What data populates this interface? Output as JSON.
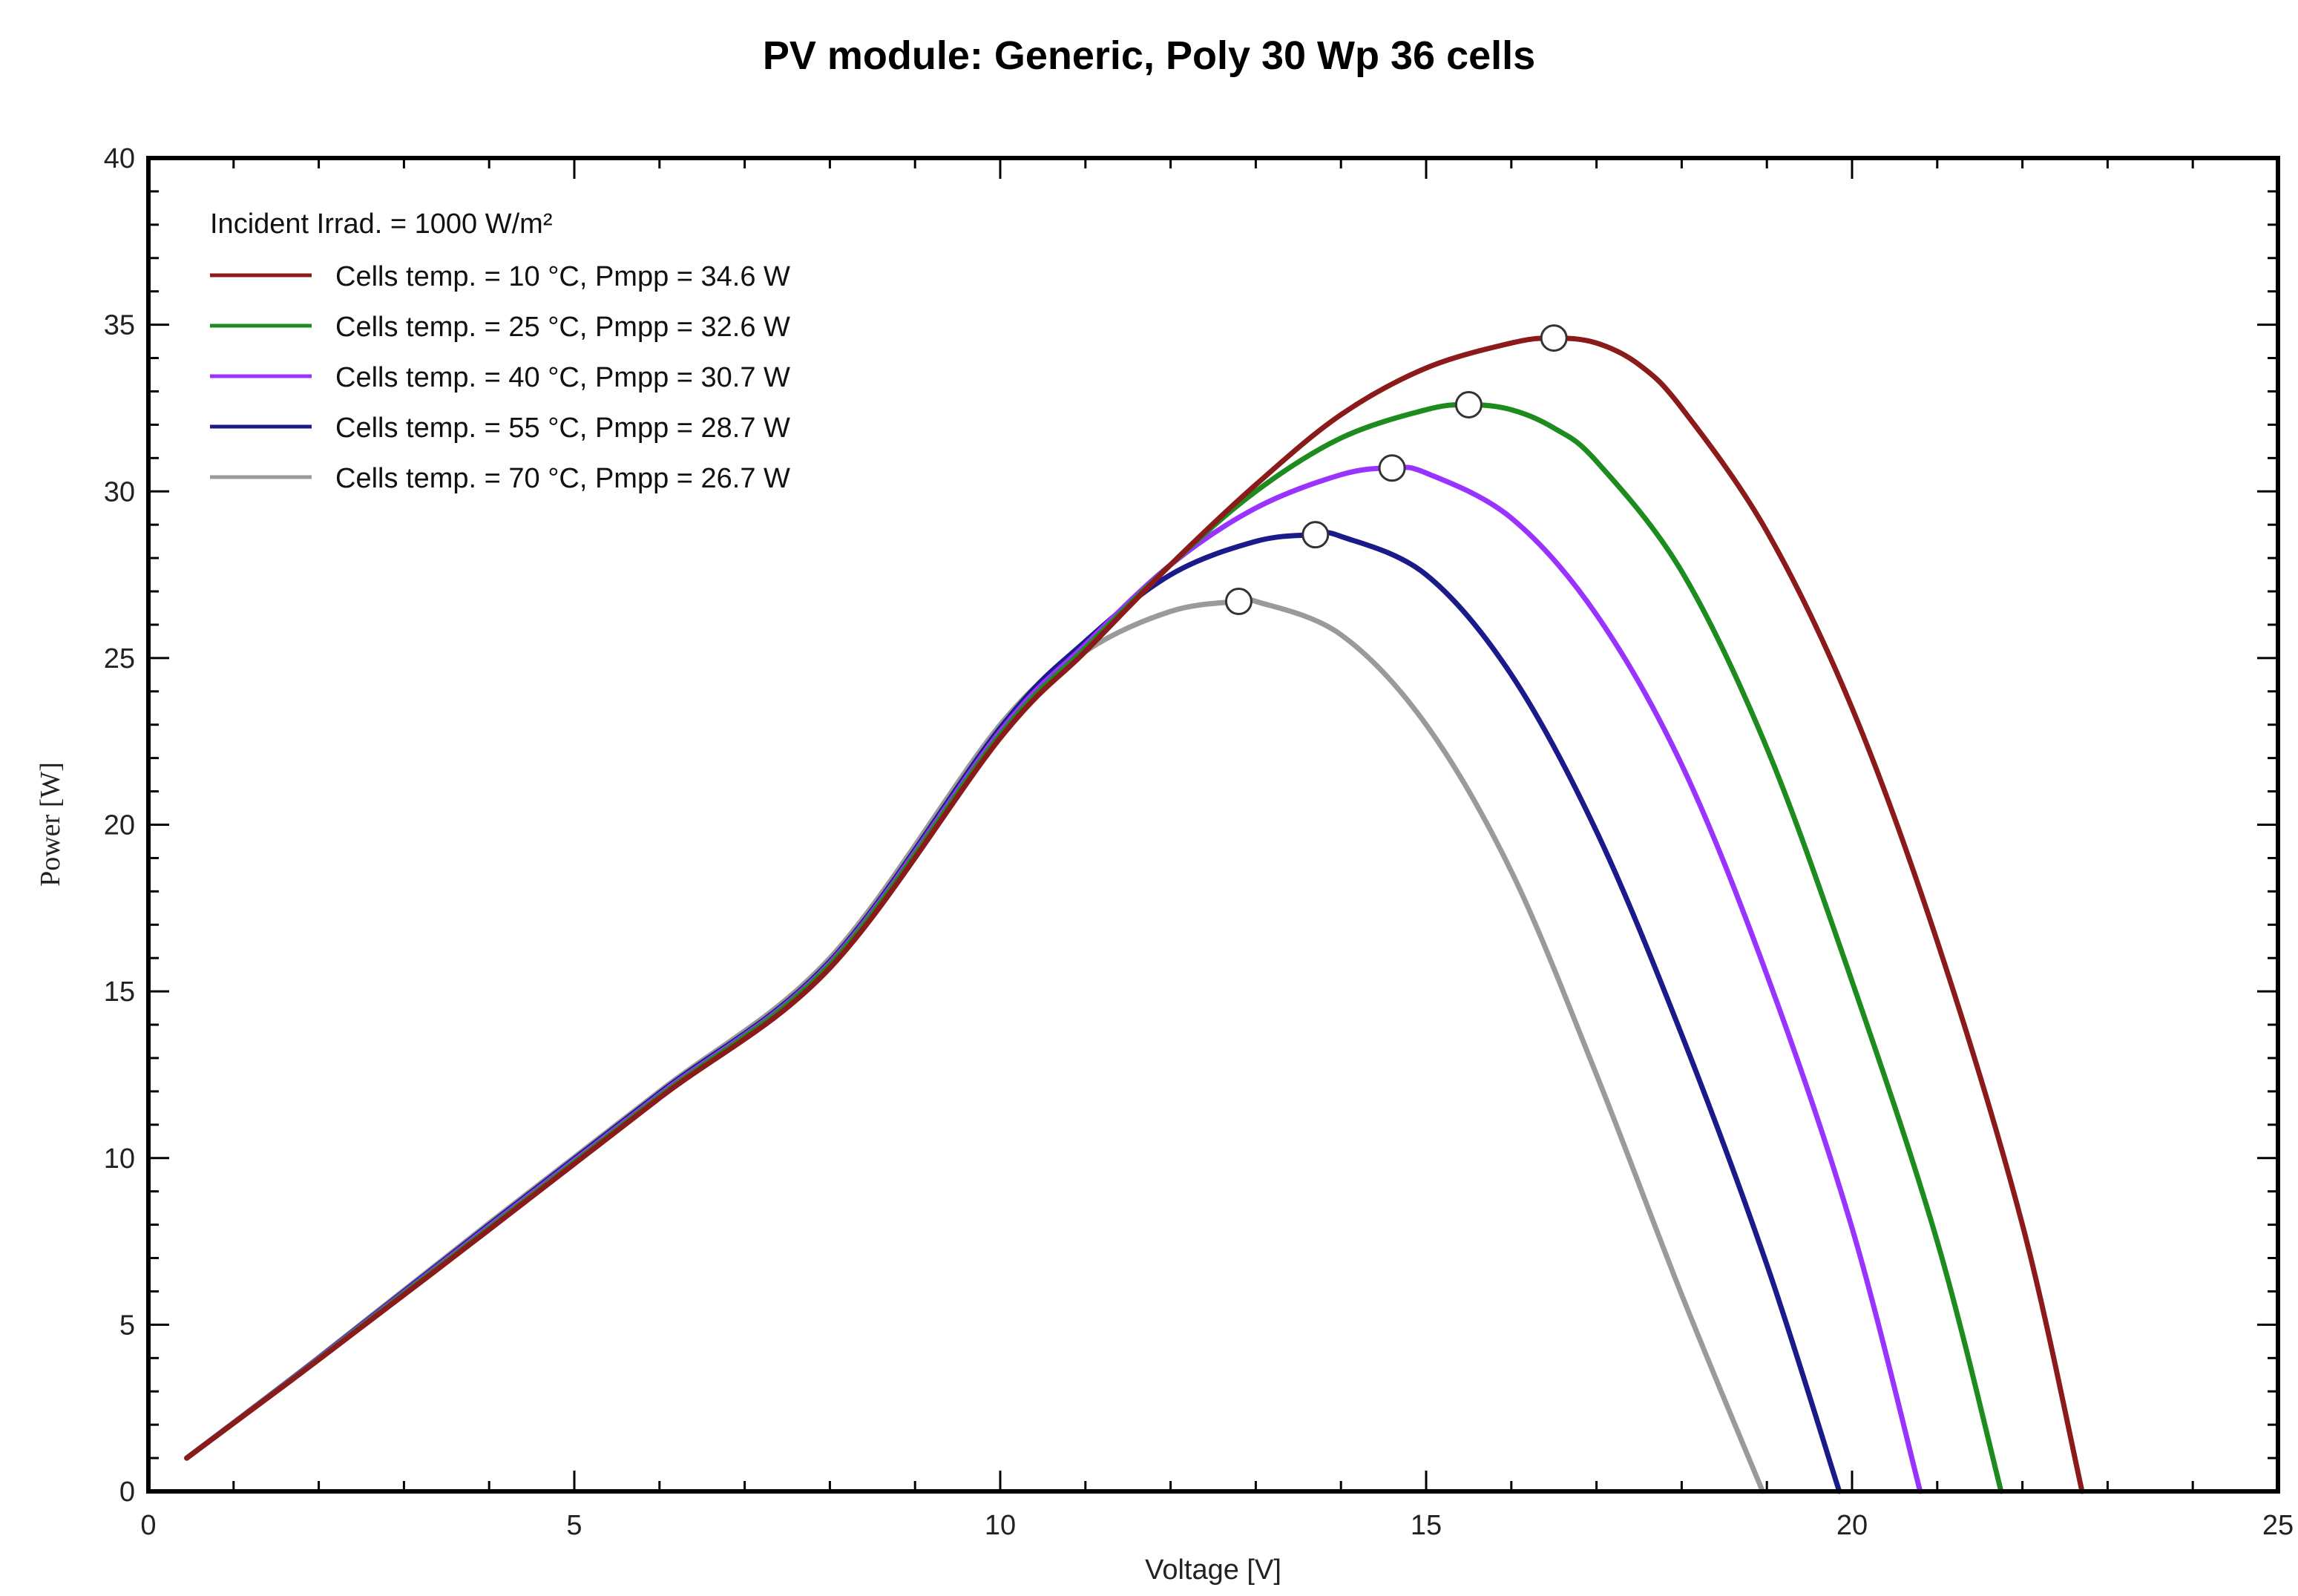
{
  "chart_data": {
    "type": "line",
    "title": "PV module:  Generic,  Poly 30 Wp 36 cells",
    "xlabel": "Voltage [V]",
    "ylabel": "Power [W]",
    "xlim": [
      0,
      25
    ],
    "ylim": [
      0,
      40
    ],
    "x_ticks": [
      0,
      5,
      10,
      15,
      20,
      25
    ],
    "y_ticks": [
      0,
      5,
      10,
      15,
      20,
      25,
      30,
      35,
      40
    ],
    "grid": false,
    "legend_position": "top-left",
    "legend_header": "Incident Irrad. = 1000 W/m²",
    "series": [
      {
        "name": "Cells temp. = 10 °C,  Pmpp = 34.6 W",
        "color": "#8B1A1A",
        "mpp": [
          16.5,
          34.6
        ],
        "points": [
          [
            0.45,
            1.0
          ],
          [
            2,
            3.95
          ],
          [
            4,
            7.85
          ],
          [
            6,
            11.8
          ],
          [
            8,
            15.7
          ],
          [
            10,
            22.6
          ],
          [
            11,
            25.2
          ],
          [
            12,
            27.8
          ],
          [
            13,
            30.2
          ],
          [
            14,
            32.3
          ],
          [
            15,
            33.7
          ],
          [
            16,
            34.45
          ],
          [
            16.5,
            34.6
          ],
          [
            17,
            34.45
          ],
          [
            17.5,
            33.8
          ],
          [
            18,
            32.5
          ],
          [
            19,
            28.8
          ],
          [
            20,
            23.5
          ],
          [
            21,
            16.5
          ],
          [
            22,
            8.0
          ],
          [
            22.7,
            0
          ]
        ]
      },
      {
        "name": "Cells temp. = 25 °C,  Pmpp = 32.6 W",
        "color": "#1E8B1E",
        "mpp": [
          15.5,
          32.6
        ],
        "points": [
          [
            0.45,
            1.0
          ],
          [
            2,
            3.97
          ],
          [
            4,
            7.9
          ],
          [
            6,
            11.85
          ],
          [
            8,
            15.8
          ],
          [
            10,
            22.7
          ],
          [
            11,
            25.3
          ],
          [
            12,
            27.8
          ],
          [
            13,
            30.0
          ],
          [
            14,
            31.6
          ],
          [
            15,
            32.45
          ],
          [
            15.5,
            32.6
          ],
          [
            16,
            32.45
          ],
          [
            16.5,
            31.9
          ],
          [
            17,
            30.9
          ],
          [
            18,
            27.6
          ],
          [
            19,
            22.3
          ],
          [
            20,
            15.3
          ],
          [
            21,
            7.5
          ],
          [
            21.75,
            0
          ]
        ]
      },
      {
        "name": "Cells temp. = 40 °C,  Pmpp = 30.7 W",
        "color": "#9933FF",
        "mpp": [
          14.6,
          30.7
        ],
        "points": [
          [
            0.45,
            1.0
          ],
          [
            2,
            3.99
          ],
          [
            4,
            7.95
          ],
          [
            6,
            11.9
          ],
          [
            8,
            15.85
          ],
          [
            10,
            22.8
          ],
          [
            11,
            25.4
          ],
          [
            12,
            27.8
          ],
          [
            13,
            29.5
          ],
          [
            14,
            30.5
          ],
          [
            14.6,
            30.7
          ],
          [
            15,
            30.55
          ],
          [
            16,
            29.2
          ],
          [
            17,
            26.3
          ],
          [
            18,
            21.8
          ],
          [
            19,
            15.5
          ],
          [
            20,
            7.9
          ],
          [
            20.8,
            0
          ]
        ]
      },
      {
        "name": "Cells temp. = 55 °C,  Pmpp = 28.7 W",
        "color": "#1A1A8B",
        "mpp": [
          13.7,
          28.7
        ],
        "points": [
          [
            0.45,
            1.0
          ],
          [
            2,
            4.0
          ],
          [
            4,
            8.0
          ],
          [
            6,
            11.95
          ],
          [
            8,
            15.9
          ],
          [
            10,
            22.9
          ],
          [
            11,
            25.5
          ],
          [
            12,
            27.5
          ],
          [
            13,
            28.5
          ],
          [
            13.7,
            28.7
          ],
          [
            14,
            28.65
          ],
          [
            15,
            27.5
          ],
          [
            16,
            24.5
          ],
          [
            17,
            19.8
          ],
          [
            18,
            13.7
          ],
          [
            19,
            6.8
          ],
          [
            19.85,
            0
          ]
        ]
      },
      {
        "name": "Cells temp. = 70 °C,  Pmpp = 26.7 W",
        "color": "#9A9A9A",
        "mpp": [
          12.8,
          26.7
        ],
        "points": [
          [
            0.45,
            1.0
          ],
          [
            2,
            4.02
          ],
          [
            4,
            8.05
          ],
          [
            6,
            12.0
          ],
          [
            8,
            16.0
          ],
          [
            10,
            23.0
          ],
          [
            11,
            25.2
          ],
          [
            12,
            26.4
          ],
          [
            12.8,
            26.7
          ],
          [
            13,
            26.7
          ],
          [
            14,
            25.7
          ],
          [
            15,
            23.0
          ],
          [
            16,
            18.6
          ],
          [
            17,
            12.5
          ],
          [
            18,
            5.9
          ],
          [
            18.95,
            0
          ]
        ]
      }
    ]
  }
}
